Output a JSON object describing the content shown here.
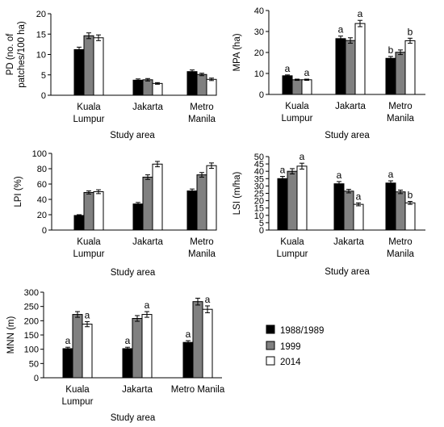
{
  "legend": {
    "items": [
      {
        "label": "1988/1989",
        "color": "#000000"
      },
      {
        "label": "1999",
        "color": "#808080"
      },
      {
        "label": "2014",
        "color": "#ffffff"
      }
    ]
  },
  "chart_data": [
    {
      "type": "bar",
      "ylabel": "PD (no. of patches/100 ha)",
      "xlabel": "Study area",
      "categories": [
        "Kuala Lumpur",
        "Jakarta",
        "Metro Manila"
      ],
      "ylim": [
        0,
        20
      ],
      "yticks": [
        0,
        5,
        10,
        15,
        20
      ],
      "series": [
        {
          "name": "1988/1989",
          "values": [
            11.2,
            3.7,
            5.8
          ],
          "errors": [
            0.6,
            0.3,
            0.4
          ],
          "labels": [
            "",
            "",
            ""
          ]
        },
        {
          "name": "1999",
          "values": [
            14.6,
            3.8,
            5.1
          ],
          "errors": [
            0.7,
            0.3,
            0.3
          ],
          "labels": [
            "",
            "",
            ""
          ]
        },
        {
          "name": "2014",
          "values": [
            14.1,
            2.9,
            3.9
          ],
          "errors": [
            0.7,
            0.2,
            0.3
          ],
          "labels": [
            "",
            "",
            ""
          ]
        }
      ]
    },
    {
      "type": "bar",
      "ylabel": "MPA (ha)",
      "xlabel": "Study area",
      "categories": [
        "Kuala Lumpur",
        "Jakarta",
        "Metro Manila"
      ],
      "ylim": [
        0,
        40
      ],
      "yticks": [
        0,
        10,
        20,
        30,
        40
      ],
      "series": [
        {
          "name": "1988/1989",
          "values": [
            8.9,
            26.6,
            17.2
          ],
          "errors": [
            0.4,
            1.2,
            0.9
          ],
          "labels": [
            "a",
            "a",
            "b"
          ]
        },
        {
          "name": "1999",
          "values": [
            7.0,
            25.7,
            20.1
          ],
          "errors": [
            0.3,
            1.3,
            1.1
          ],
          "labels": [
            "",
            "",
            ""
          ]
        },
        {
          "name": "2014",
          "values": [
            7.0,
            33.8,
            25.6
          ],
          "errors": [
            0.3,
            1.5,
            1.2
          ],
          "labels": [
            "a",
            "a",
            "b"
          ]
        }
      ]
    },
    {
      "type": "bar",
      "ylabel": "LPI (%)",
      "xlabel": "Study area",
      "categories": [
        "Kuala Lumpur",
        "Jakarta",
        "Metro Manila"
      ],
      "ylim": [
        0,
        100
      ],
      "yticks": [
        0,
        20,
        40,
        60,
        80,
        100
      ],
      "series": [
        {
          "name": "1988/1989",
          "values": [
            19,
            34,
            51
          ],
          "errors": [
            1.0,
            2.0,
            2.5
          ],
          "labels": [
            "",
            "",
            ""
          ]
        },
        {
          "name": "1999",
          "values": [
            49,
            69,
            72
          ],
          "errors": [
            2.0,
            3.0,
            3.0
          ],
          "labels": [
            "",
            "",
            ""
          ]
        },
        {
          "name": "2014",
          "values": [
            50,
            86,
            84
          ],
          "errors": [
            2.5,
            3.5,
            3.5
          ],
          "labels": [
            "",
            "",
            ""
          ]
        }
      ]
    },
    {
      "type": "bar",
      "ylabel": "LSI (m/ha)",
      "xlabel": "Study area",
      "categories": [
        "Kuala Lumpur",
        "Jakarta",
        "Metro Manila"
      ],
      "ylim": [
        0,
        50
      ],
      "yticks": [
        0,
        5,
        10,
        15,
        20,
        25,
        30,
        35,
        40,
        45,
        50
      ],
      "series": [
        {
          "name": "1988/1989",
          "values": [
            35,
            31.5,
            32
          ],
          "errors": [
            1.5,
            1.5,
            1.5
          ],
          "labels": [
            "a",
            "a",
            "a"
          ]
        },
        {
          "name": "1999",
          "values": [
            40,
            26.5,
            26
          ],
          "errors": [
            1.8,
            1.2,
            1.2
          ],
          "labels": [
            "",
            "",
            ""
          ]
        },
        {
          "name": "2014",
          "values": [
            43.5,
            17.5,
            18.5
          ],
          "errors": [
            2.0,
            1.0,
            1.0
          ],
          "labels": [
            "a",
            "a",
            "b"
          ]
        }
      ]
    },
    {
      "type": "bar",
      "ylabel": "MNN (m)",
      "xlabel": "Study area",
      "categories": [
        "Kuala Lumpur",
        "Jakarta",
        "Metro Manila"
      ],
      "ylim": [
        0,
        300
      ],
      "yticks": [
        0,
        50,
        100,
        150,
        200,
        250,
        300
      ],
      "series": [
        {
          "name": "1988/1989",
          "values": [
            102,
            102,
            124
          ],
          "errors": [
            5,
            5,
            6
          ],
          "labels": [
            "a",
            "a",
            "a"
          ]
        },
        {
          "name": "1999",
          "values": [
            222,
            208,
            267
          ],
          "errors": [
            10,
            10,
            12
          ],
          "labels": [
            "",
            "",
            ""
          ]
        },
        {
          "name": "2014",
          "values": [
            188,
            222,
            240
          ],
          "errors": [
            9,
            10,
            12
          ],
          "labels": [
            "a",
            "a",
            "a"
          ]
        }
      ]
    }
  ]
}
